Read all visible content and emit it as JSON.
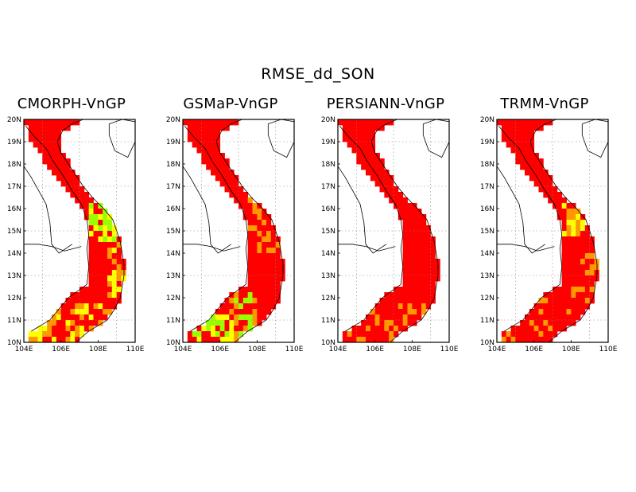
{
  "figure": {
    "title": "RMSE_dd_SON"
  },
  "colors": {
    "high": "#ff0000",
    "mid": "#ff9900",
    "low": "#ffff00",
    "lowest": "#99ff00",
    "frame": "#000000"
  },
  "axes": {
    "lat_labels": [
      "20N",
      "19N",
      "18N",
      "17N",
      "16N",
      "15N",
      "14N",
      "13N",
      "12N",
      "11N",
      "10N"
    ],
    "lon_labels": [
      "104E",
      "106E",
      "108E",
      "110E"
    ]
  },
  "panels": [
    {
      "id": "cmorph",
      "title": "CMORPH-VnGP",
      "pattern": "mixed"
    },
    {
      "id": "gsmap",
      "title": "GSMaP-VnGP",
      "pattern": "green-south"
    },
    {
      "id": "persiann",
      "title": "PERSIANN-VnGP",
      "pattern": "mostly-red"
    },
    {
      "id": "trmm",
      "title": "TRMM-VnGP",
      "pattern": "central-yellow"
    }
  ]
}
